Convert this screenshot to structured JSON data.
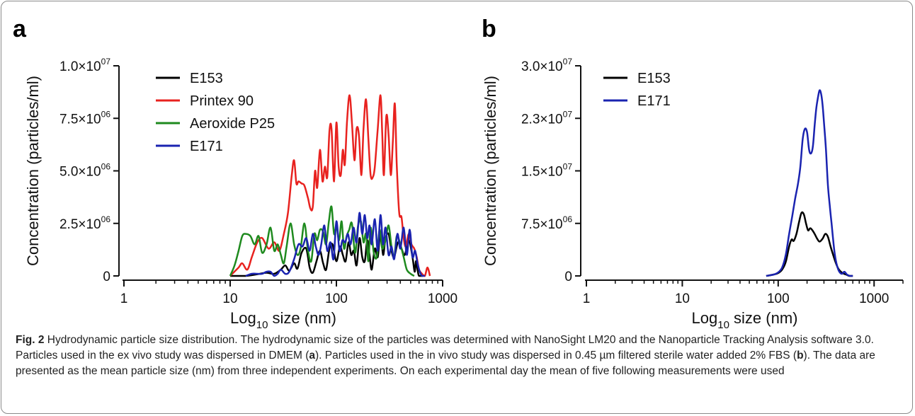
{
  "caption": {
    "fig_label": "Fig. 2",
    "title": "Hydrodynamic particle size distribution.",
    "text_1": "The hydrodynamic size of the particles was determined with NanoSight LM20 and the Nanoparticle Tracking Analysis software 3.0. Particles used in the ex vivo study was dispersed in DMEM (",
    "ref_a": "a",
    "text_2": "). Particles used in the in vivo study was dispersed in 0.45 µm filtered sterile water added 2% FBS (",
    "ref_b": "b",
    "text_3": "). The data are presented as the mean particle size (nm) from three independent experiments. On each experimental day the mean of five following measurements were used"
  },
  "colors": {
    "E153": "#000000",
    "Printex 90": "#e8221f",
    "Aeroxide P25": "#1e8a1e",
    "E171": "#1a23b0"
  },
  "chart_data": [
    {
      "panel": "a",
      "type": "line",
      "ylabel": "Concentration (particles/ml)",
      "xlabel": {
        "main": "Log",
        "sub": "10",
        "rest": " size (nm)"
      },
      "xscale": "log",
      "xlim": [
        1,
        1000
      ],
      "ylim": [
        0,
        10000000
      ],
      "xticks": [
        {
          "v": 1,
          "label": "1"
        },
        {
          "v": 10,
          "label": "10"
        },
        {
          "v": 100,
          "label": "100"
        },
        {
          "v": 1000,
          "label": "1000"
        }
      ],
      "yticks": [
        {
          "v": 0,
          "plain": "0"
        },
        {
          "v": 2500000,
          "mant": "2.5×10",
          "exp": "06"
        },
        {
          "v": 5000000,
          "mant": "5.0×10",
          "exp": "06"
        },
        {
          "v": 7500000,
          "mant": "7.5×10",
          "exp": "06"
        },
        {
          "v": 10000000,
          "mant": "1.0×10",
          "exp": "07"
        }
      ],
      "legend_position": "top-left",
      "series": [
        {
          "name": "E153",
          "color": "#000000",
          "x": [
            10,
            14,
            18,
            22,
            26,
            30,
            33,
            36,
            40,
            43,
            47,
            52,
            56,
            60,
            65,
            70,
            75,
            80,
            86,
            92,
            100,
            108,
            115,
            122,
            130,
            138,
            146,
            155,
            165,
            175,
            185,
            195,
            205,
            215,
            230,
            245,
            260,
            275,
            290,
            310,
            330,
            350,
            380,
            410,
            440,
            480,
            520,
            545,
            560,
            580,
            600,
            650
          ],
          "y": [
            0,
            0,
            80000,
            150000,
            100000,
            300000,
            500000,
            250000,
            600000,
            350000,
            1100000,
            1300000,
            400000,
            150000,
            700000,
            1200000,
            600000,
            300000,
            1300000,
            1500000,
            700000,
            1400000,
            1000000,
            700000,
            1600000,
            1000000,
            1200000,
            500000,
            1800000,
            900000,
            700000,
            1700000,
            1000000,
            300000,
            1300000,
            900000,
            2100000,
            1000000,
            1800000,
            2000000,
            1200000,
            900000,
            1600000,
            1300000,
            1000000,
            1700000,
            900000,
            200000,
            700000,
            300000,
            0,
            0
          ]
        },
        {
          "name": "Printex 90",
          "color": "#e8221f",
          "x": [
            10,
            12,
            13,
            14.5,
            16,
            18,
            20,
            23,
            26,
            29,
            32,
            35,
            38,
            40,
            42,
            44,
            47,
            50,
            54,
            57,
            60,
            63,
            66,
            70,
            74,
            78,
            82,
            86,
            90,
            95,
            100,
            105,
            110,
            115,
            120,
            126,
            133,
            140,
            148,
            155,
            163,
            172,
            180,
            190,
            200,
            210,
            220,
            230,
            245,
            260,
            270,
            280,
            295,
            310,
            325,
            340,
            355,
            370,
            390,
            410,
            430,
            450,
            480,
            510,
            540,
            570,
            600,
            640,
            680,
            720,
            760
          ],
          "y": [
            0,
            400000,
            600000,
            300000,
            900000,
            1600000,
            1800000,
            1300000,
            1600000,
            1200000,
            2000000,
            3000000,
            4800000,
            5500000,
            4400000,
            4500000,
            4400000,
            4300000,
            3700000,
            3200000,
            3300000,
            5000000,
            4200000,
            6000000,
            4500000,
            5200000,
            4700000,
            6900000,
            7000000,
            4500000,
            7300000,
            5200000,
            4800000,
            6000000,
            5300000,
            7400000,
            8600000,
            7300000,
            5500000,
            7000000,
            6700000,
            4800000,
            7000000,
            8400000,
            6500000,
            4800000,
            4700000,
            5200000,
            7000000,
            8600000,
            6800000,
            4800000,
            7600000,
            6700000,
            4800000,
            6400000,
            8200000,
            5300000,
            3000000,
            2800000,
            1800000,
            1400000,
            2000000,
            1500000,
            1300000,
            900000,
            300000,
            100000,
            0,
            400000,
            0
          ]
        },
        {
          "name": "Aeroxide P25",
          "color": "#1e8a1e",
          "x": [
            10,
            11,
            12,
            13,
            14,
            15.5,
            17,
            18.5,
            20,
            22,
            24,
            26,
            28,
            30,
            32,
            34,
            37,
            40,
            43,
            46,
            50,
            54,
            58,
            62,
            66,
            70,
            75,
            80,
            85,
            90,
            95,
            100,
            106,
            112,
            118,
            125,
            132,
            140,
            150,
            160,
            170,
            180,
            190,
            200,
            210,
            225,
            240,
            255,
            270,
            290,
            310,
            330,
            350,
            370,
            400,
            430,
            460,
            500,
            540
          ],
          "y": [
            0,
            500000,
            1200000,
            1900000,
            2000000,
            1900000,
            1500000,
            1900000,
            1100000,
            1500000,
            2300000,
            1200000,
            1500000,
            1000000,
            600000,
            1400000,
            2500000,
            1500000,
            1000000,
            1300000,
            2500000,
            1200000,
            700000,
            2000000,
            1700000,
            2200000,
            2100000,
            1500000,
            2600000,
            3300000,
            2000000,
            2400000,
            1700000,
            2600000,
            1300000,
            1900000,
            2200000,
            2500000,
            1100000,
            2400000,
            2600000,
            1600000,
            2000000,
            700000,
            2300000,
            1100000,
            900000,
            2200000,
            1300000,
            1700000,
            2400000,
            1400000,
            900000,
            1900000,
            1500000,
            900000,
            300000,
            100000,
            0
          ]
        },
        {
          "name": "E171",
          "color": "#1a23b0",
          "x": [
            14,
            16,
            18,
            20,
            22,
            24,
            26,
            28,
            30,
            33,
            36,
            40,
            44,
            48,
            52,
            56,
            60,
            64,
            68,
            72,
            77,
            82,
            88,
            94,
            100,
            107,
            114,
            121,
            128,
            136,
            145,
            155,
            165,
            175,
            185,
            195,
            205,
            215,
            230,
            245,
            260,
            275,
            290,
            310,
            330,
            350,
            375,
            400,
            430,
            460,
            490,
            520,
            550,
            580,
            610,
            640,
            680
          ],
          "y": [
            0,
            100000,
            100000,
            100000,
            200000,
            200000,
            0,
            100000,
            300000,
            100000,
            200000,
            800000,
            1500000,
            1400000,
            1800000,
            1200000,
            2000000,
            1400000,
            1000000,
            1500000,
            2400000,
            1200000,
            1600000,
            800000,
            2600000,
            1200000,
            1700000,
            1600000,
            2000000,
            1500000,
            2300000,
            1600000,
            3000000,
            2000000,
            2900000,
            1800000,
            2400000,
            1500000,
            2700000,
            1200000,
            2900000,
            1500000,
            2300000,
            1000000,
            1400000,
            800000,
            2000000,
            1300000,
            2300000,
            1000000,
            2200000,
            900000,
            1200000,
            600000,
            200000,
            0,
            0
          ]
        }
      ]
    },
    {
      "panel": "b",
      "type": "line",
      "ylabel": "Concentration (particles/ml)",
      "xlabel": {
        "main": "Log",
        "sub": "10",
        "rest": " size (nm)"
      },
      "xscale": "log",
      "xlim": [
        1,
        2000
      ],
      "ylim": [
        0,
        30000000
      ],
      "xticks": [
        {
          "v": 1,
          "label": "1"
        },
        {
          "v": 10,
          "label": "10"
        },
        {
          "v": 100,
          "label": "100"
        },
        {
          "v": 1000,
          "label": "1000"
        }
      ],
      "yticks": [
        {
          "v": 0,
          "plain": "0"
        },
        {
          "v": 7500000,
          "mant": "7.5×10",
          "exp": "06"
        },
        {
          "v": 15000000,
          "mant": "1.5×10",
          "exp": "07"
        },
        {
          "v": 22500000,
          "mant": "2.3×10",
          "exp": "07"
        },
        {
          "v": 30000000,
          "mant": "3.0×10",
          "exp": "07"
        }
      ],
      "legend_position": "top-left",
      "series": [
        {
          "name": "E153",
          "color": "#000000",
          "x": [
            75,
            90,
            100,
            110,
            120,
            130,
            138,
            145,
            155,
            165,
            175,
            185,
            195,
            205,
            215,
            225,
            240,
            255,
            270,
            290,
            310,
            330,
            350,
            370,
            400,
            430,
            470,
            510,
            550,
            600
          ],
          "y": [
            0,
            200000,
            400000,
            900000,
            2000000,
            4200000,
            5200000,
            5000000,
            6000000,
            7700000,
            9000000,
            8800000,
            7500000,
            6500000,
            6800000,
            6600000,
            6000000,
            5300000,
            4900000,
            5300000,
            6000000,
            5600000,
            4300000,
            3200000,
            1800000,
            900000,
            400000,
            200000,
            0,
            0
          ]
        },
        {
          "name": "E171",
          "color": "#1a23b0",
          "x": [
            75,
            90,
            100,
            110,
            120,
            130,
            140,
            150,
            160,
            170,
            180,
            190,
            200,
            210,
            220,
            230,
            240,
            250,
            260,
            270,
            280,
            290,
            300,
            315,
            330,
            345,
            360,
            375,
            390,
            410,
            430,
            460,
            490,
            520,
            560,
            600
          ],
          "y": [
            0,
            200000,
            500000,
            1200000,
            3000000,
            6000000,
            8500000,
            11000000,
            13000000,
            15500000,
            19500000,
            21000000,
            20500000,
            18000000,
            17500000,
            18500000,
            21500000,
            24000000,
            25500000,
            26500000,
            26000000,
            24500000,
            22000000,
            18000000,
            13000000,
            10000000,
            7500000,
            5000000,
            3000000,
            1500000,
            700000,
            300000,
            600000,
            200000,
            0,
            0
          ]
        }
      ]
    }
  ]
}
